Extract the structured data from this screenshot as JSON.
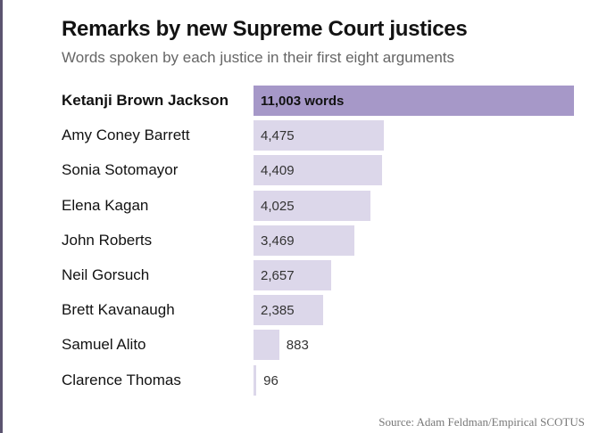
{
  "header": {
    "title": "Remarks by new Supreme Court justices",
    "subtitle": "Words spoken by each justice in their first eight arguments"
  },
  "colors": {
    "highlight_bar": "#a698c8",
    "default_bar": "#dcd7ea"
  },
  "chart_data": {
    "type": "bar",
    "orientation": "horizontal",
    "title": "Remarks by new Supreme Court justices",
    "subtitle": "Words spoken by each justice in their first eight arguments",
    "categories": [
      "Ketanji Brown Jackson",
      "Amy Coney Barrett",
      "Sonia Sotomayor",
      "Elena Kagan",
      "John Roberts",
      "Neil Gorsuch",
      "Brett Kavanaugh",
      "Samuel Alito",
      "Clarence Thomas"
    ],
    "values": [
      11003,
      4475,
      4409,
      4025,
      3469,
      2657,
      2385,
      883,
      96
    ],
    "value_labels": [
      "11,003 words",
      "4,475",
      "4,409",
      "4,025",
      "3,469",
      "2,657",
      "2,385",
      "883",
      "96"
    ],
    "highlighted_category": "Ketanji Brown Jackson",
    "xlim": [
      0,
      11003
    ],
    "grid": false,
    "legend": "none"
  },
  "source": "Source: Adam Feldman/Empirical SCOTUS"
}
